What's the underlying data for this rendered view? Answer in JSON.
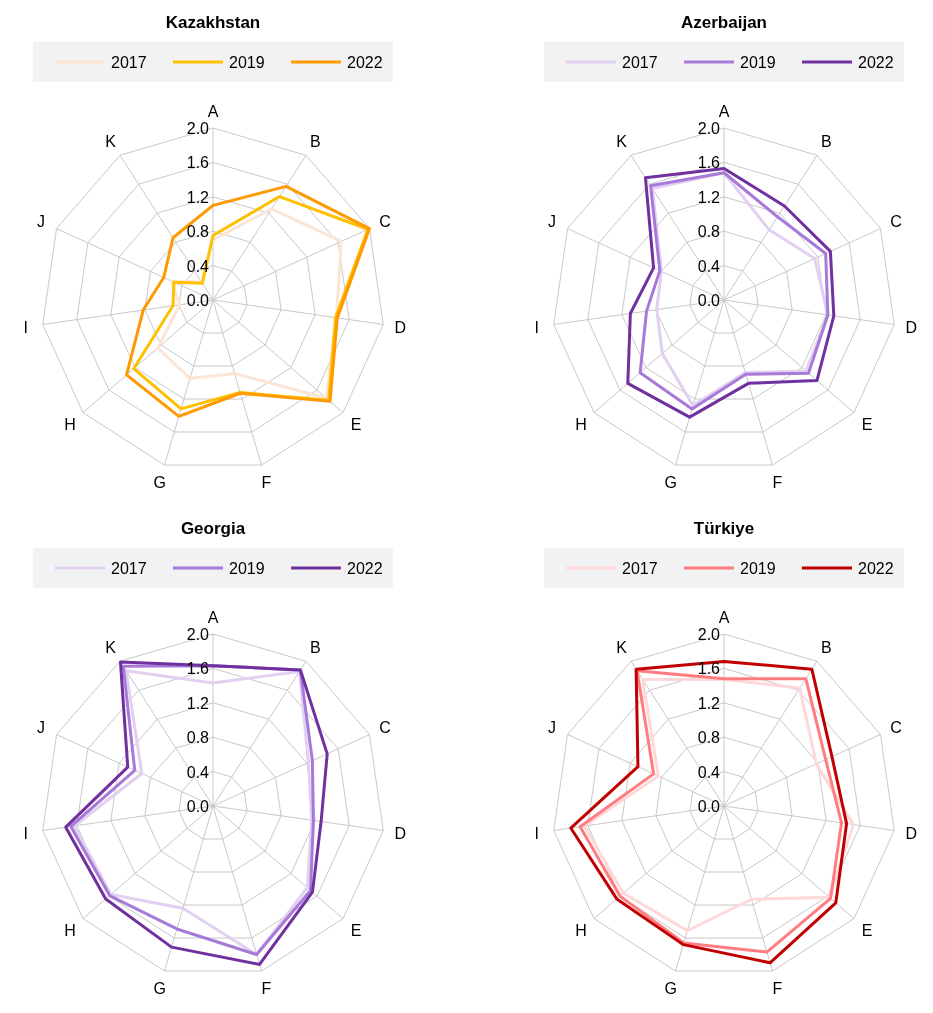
{
  "chart_data": [
    {
      "type": "radar",
      "title": "Kazakhstan",
      "categories": [
        "A",
        "B",
        "C",
        "D",
        "E",
        "F",
        "G",
        "H",
        "I",
        "J",
        "K"
      ],
      "ylim": [
        0,
        2
      ],
      "yticks": [
        {
          "value": 0,
          "label": "0.0"
        },
        {
          "value": 0.4,
          "label": "0.4"
        },
        {
          "value": 0.8,
          "label": "0.8"
        },
        {
          "value": 1.2,
          "label": "1.2"
        },
        {
          "value": 1.6,
          "label": "1.6"
        },
        {
          "value": 2,
          "label": "2.0"
        }
      ],
      "grid": true,
      "legend": "top",
      "line_style": "solid",
      "marker": "none",
      "series": [
        {
          "name": "2017",
          "color": "#fbe5d6",
          "values": [
            0.7,
            1.26,
            1.64,
            1.45,
            1.74,
            0.89,
            0.95,
            0.85,
            0.39,
            0.53,
            0.25
          ]
        },
        {
          "name": "2019",
          "color": "#ffc000",
          "values": [
            0.75,
            1.43,
            1.98,
            1.44,
            1.78,
            1.12,
            1.32,
            1.22,
            0.47,
            0.5,
            0.23
          ]
        },
        {
          "name": "2022",
          "color": "#ff9900",
          "values": [
            1.1,
            1.57,
            2.0,
            1.46,
            1.8,
            1.13,
            1.41,
            1.33,
            0.82,
            0.63,
            0.86
          ]
        }
      ]
    },
    {
      "type": "radar",
      "title": "Azerbaijan",
      "categories": [
        "A",
        "B",
        "C",
        "D",
        "E",
        "F",
        "G",
        "H",
        "I",
        "J",
        "K"
      ],
      "ylim": [
        0,
        2
      ],
      "yticks": [
        {
          "value": 0,
          "label": "0.0"
        },
        {
          "value": 0.4,
          "label": "0.4"
        },
        {
          "value": 0.8,
          "label": "0.8"
        },
        {
          "value": 1.2,
          "label": "1.2"
        },
        {
          "value": 1.6,
          "label": "1.6"
        },
        {
          "value": 2,
          "label": "2.0"
        }
      ],
      "grid": true,
      "legend": "top",
      "line_style": "solid",
      "marker": "none",
      "series": [
        {
          "name": "2017",
          "color": "#e2d0f0",
          "values": [
            1.48,
            0.97,
            1.16,
            1.22,
            1.26,
            0.88,
            1.28,
            0.95,
            0.79,
            0.8,
            1.54
          ]
        },
        {
          "name": "2019",
          "color": "#a779d9",
          "values": [
            1.48,
            1.15,
            1.3,
            1.22,
            1.3,
            0.9,
            1.32,
            1.29,
            0.91,
            0.82,
            1.58
          ]
        },
        {
          "name": "2022",
          "color": "#7030a0",
          "values": [
            1.53,
            1.3,
            1.36,
            1.29,
            1.43,
            1.01,
            1.42,
            1.48,
            1.1,
            0.9,
            1.69
          ]
        }
      ]
    },
    {
      "type": "radar",
      "title": "Georgia",
      "categories": [
        "A",
        "B",
        "C",
        "D",
        "E",
        "F",
        "G",
        "H",
        "I",
        "J",
        "K"
      ],
      "ylim": [
        0,
        2
      ],
      "yticks": [
        {
          "value": 0,
          "label": "0.0"
        },
        {
          "value": 0.4,
          "label": "0.4"
        },
        {
          "value": 0.8,
          "label": "0.8"
        },
        {
          "value": 1.2,
          "label": "1.2"
        },
        {
          "value": 1.6,
          "label": "1.6"
        },
        {
          "value": 2,
          "label": "2.0"
        }
      ],
      "grid": true,
      "legend": "top",
      "line_style": "solid",
      "marker": "none",
      "series": [
        {
          "name": "2017",
          "color": "#e2d0f0",
          "values": [
            1.43,
            1.86,
            1.22,
            1.16,
            1.45,
            1.8,
            1.24,
            1.57,
            1.63,
            0.91,
            1.87
          ]
        },
        {
          "name": "2019",
          "color": "#a779d9",
          "values": [
            1.63,
            1.88,
            1.27,
            1.18,
            1.5,
            1.8,
            1.49,
            1.59,
            1.67,
            1.0,
            1.93
          ]
        },
        {
          "name": "2022",
          "color": "#7030a0",
          "values": [
            1.63,
            1.88,
            1.46,
            1.27,
            1.53,
            1.92,
            1.71,
            1.65,
            1.73,
            1.09,
            1.99
          ]
        }
      ]
    },
    {
      "type": "radar",
      "title": "Türkiye",
      "categories": [
        "A",
        "B",
        "C",
        "D",
        "E",
        "F",
        "G",
        "H",
        "I",
        "J",
        "K"
      ],
      "ylim": [
        0,
        2
      ],
      "yticks": [
        {
          "value": 0,
          "label": "0.0"
        },
        {
          "value": 0.4,
          "label": "0.4"
        },
        {
          "value": 0.8,
          "label": "0.8"
        },
        {
          "value": 1.2,
          "label": "1.2"
        },
        {
          "value": 1.6,
          "label": "1.6"
        },
        {
          "value": 2,
          "label": "2.0"
        }
      ],
      "grid": true,
      "legend": "top",
      "line_style": "solid",
      "marker": "none",
      "series": [
        {
          "name": "2017",
          "color": "#ffd9d9",
          "values": [
            1.47,
            1.63,
            1.18,
            1.52,
            1.62,
            1.13,
            1.51,
            1.55,
            1.64,
            0.84,
            1.75
          ]
        },
        {
          "name": "2019",
          "color": "#ff7c80",
          "values": [
            1.48,
            1.76,
            1.3,
            1.38,
            1.64,
            1.77,
            1.66,
            1.6,
            1.69,
            0.9,
            1.87
          ]
        },
        {
          "name": "2022",
          "color": "#c00000",
          "values": [
            1.68,
            1.89,
            1.38,
            1.44,
            1.72,
            1.9,
            1.68,
            1.65,
            1.8,
            1.1,
            1.89
          ]
        }
      ]
    }
  ]
}
